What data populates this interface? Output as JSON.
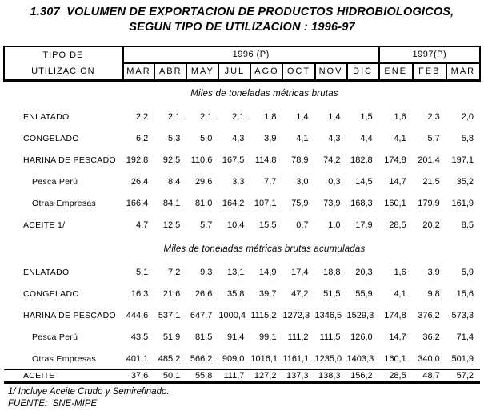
{
  "title": {
    "line1": "1.307  VOLUMEN DE EXPORTACION DE PRODUCTOS HIDROBIOLOGICOS,",
    "line2": "SEGUN TIPO DE UTILIZACION : 1996-97"
  },
  "colors": {
    "text": "#000000",
    "background": "#ffffff",
    "border": "#000000"
  },
  "table": {
    "row_header": {
      "line1": "TIPO DE",
      "line2": "UTILIZACION"
    },
    "year_groups": [
      {
        "label": "1996 (P)",
        "months": [
          "MAR",
          "ABR",
          "MAY",
          "JUL",
          "AGO",
          "OCT",
          "NOV",
          "DIC"
        ]
      },
      {
        "label": "1997(P)",
        "months": [
          "ENE",
          "FEB",
          "MAR"
        ]
      }
    ],
    "sections": [
      {
        "heading": "Miles de toneladas métricas brutas",
        "rows": [
          {
            "label": "ENLATADO",
            "indent": false,
            "values": [
              "2,2",
              "2,1",
              "2,1",
              "2,1",
              "1,8",
              "1,4",
              "1,4",
              "1,5",
              "1,6",
              "2,3",
              "2,0"
            ]
          },
          {
            "label": "CONGELADO",
            "indent": false,
            "values": [
              "6,2",
              "5,3",
              "5,0",
              "4,3",
              "3,9",
              "4,1",
              "4,3",
              "4,4",
              "4,1",
              "5,7",
              "5,8"
            ]
          },
          {
            "label": "HARINA DE PESCADO",
            "indent": false,
            "values": [
              "192,8",
              "92,5",
              "110,6",
              "167,5",
              "114,8",
              "78,9",
              "74,2",
              "182,8",
              "174,8",
              "201,4",
              "197,1"
            ]
          },
          {
            "label": "Pesca Perú",
            "indent": true,
            "values": [
              "26,4",
              "8,4",
              "29,6",
              "3,3",
              "7,7",
              "3,0",
              "0,3",
              "14,5",
              "14,7",
              "21,5",
              "35,2"
            ]
          },
          {
            "label": "Otras Empresas",
            "indent": true,
            "values": [
              "166,4",
              "84,1",
              "81,0",
              "164,2",
              "107,1",
              "75,9",
              "73,9",
              "168,3",
              "160,1",
              "179,9",
              "161,9"
            ]
          },
          {
            "label": "ACEITE 1/",
            "indent": false,
            "values": [
              "4,7",
              "12,5",
              "5,7",
              "10,4",
              "15,5",
              "0,7",
              "1,0",
              "17,9",
              "28,5",
              "20,2",
              "8,5"
            ]
          }
        ]
      },
      {
        "heading": "Miles de toneladas métricas brutas acumuladas",
        "rows": [
          {
            "label": "ENLATADO",
            "indent": false,
            "values": [
              "5,1",
              "7,2",
              "9,3",
              "13,1",
              "14,9",
              "17,4",
              "18,8",
              "20,3",
              "1,6",
              "3,9",
              "5,9"
            ]
          },
          {
            "label": "CONGELADO",
            "indent": false,
            "values": [
              "16,3",
              "21,6",
              "26,6",
              "35,8",
              "39,7",
              "47,2",
              "51,5",
              "55,9",
              "4,1",
              "9,8",
              "15,6"
            ]
          },
          {
            "label": "HARINA DE PESCADO",
            "indent": false,
            "values": [
              "444,6",
              "537,1",
              "647,7",
              "1000,4",
              "1115,2",
              "1272,3",
              "1346,5",
              "1529,3",
              "174,8",
              "376,2",
              "573,3"
            ]
          },
          {
            "label": "Pesca Perú",
            "indent": true,
            "values": [
              "43,5",
              "51,9",
              "81,5",
              "91,4",
              "99,1",
              "111,2",
              "111,5",
              "126,0",
              "14,7",
              "36,2",
              "71,4"
            ]
          },
          {
            "label": "Otras Empresas",
            "indent": true,
            "values": [
              "401,1",
              "485,2",
              "566,2",
              "909,0",
              "1016,1",
              "1161,1",
              "1235,0",
              "1403,3",
              "160,1",
              "340,0",
              "501,9"
            ]
          },
          {
            "label": "ACEITE",
            "indent": false,
            "values": [
              "37,6",
              "50,1",
              "55,8",
              "111,7",
              "127,2",
              "137,3",
              "138,3",
              "156,2",
              "28,5",
              "48,7",
              "57,2"
            ]
          }
        ]
      }
    ]
  },
  "footnotes": {
    "note1": "1/ Incluye Aceite Crudo y Semirefinado.",
    "source": "FUENTE:  SNE-MIPE"
  }
}
